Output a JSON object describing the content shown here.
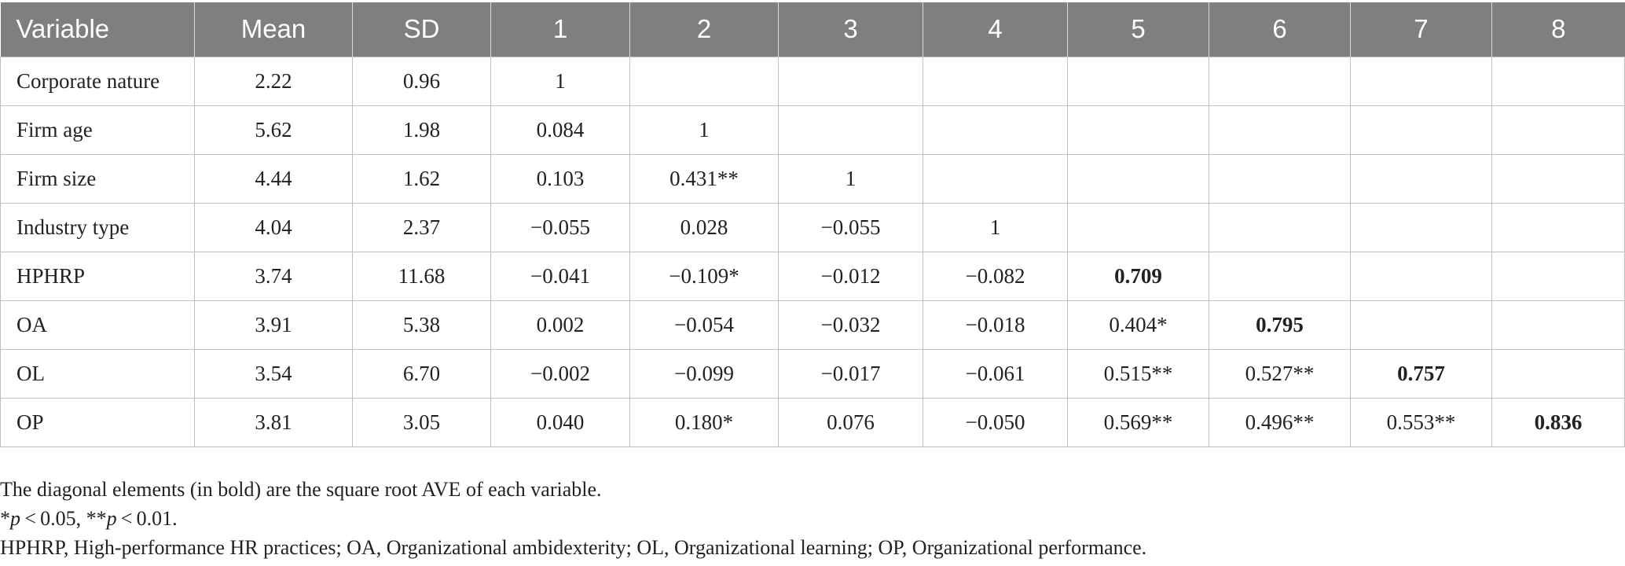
{
  "table": {
    "headers": [
      "Variable",
      "Mean",
      "SD",
      "1",
      "2",
      "3",
      "4",
      "5",
      "6",
      "7",
      "8"
    ],
    "rows": [
      [
        "Corporate nature",
        "2.22",
        "0.96",
        "1",
        "",
        "",
        "",
        "",
        "",
        "",
        ""
      ],
      [
        "Firm age",
        "5.62",
        "1.98",
        "0.084",
        "1",
        "",
        "",
        "",
        "",
        "",
        ""
      ],
      [
        "Firm size",
        "4.44",
        "1.62",
        "0.103",
        "0.431**",
        "1",
        "",
        "",
        "",
        "",
        ""
      ],
      [
        "Industry type",
        "4.04",
        "2.37",
        "−0.055",
        "0.028",
        "−0.055",
        "1",
        "",
        "",
        "",
        ""
      ],
      [
        "HPHRP",
        "3.74",
        "11.68",
        "−0.041",
        "−0.109*",
        "−0.012",
        "−0.082",
        "0.709",
        "",
        "",
        ""
      ],
      [
        "OA",
        "3.91",
        "5.38",
        "0.002",
        "−0.054",
        "−0.032",
        "−0.018",
        "0.404*",
        "0.795",
        "",
        ""
      ],
      [
        "OL",
        "3.54",
        "6.70",
        "−0.002",
        "−0.099",
        "−0.017",
        "−0.061",
        "0.515**",
        "0.527**",
        "0.757",
        ""
      ],
      [
        "OP",
        "3.81",
        "3.05",
        "0.040",
        "0.180*",
        "0.076",
        "−0.050",
        "0.569**",
        "0.496**",
        "0.553**",
        "0.836"
      ]
    ],
    "bold_cells": [
      [
        4,
        7
      ],
      [
        5,
        8
      ],
      [
        6,
        9
      ],
      [
        7,
        10
      ]
    ]
  },
  "notes": {
    "line1": "The diagonal elements (in bold) are the square root AVE of each variable.",
    "line2_star1": "*",
    "line2_p1": "p",
    "line2_mid": " < 0.05, **",
    "line2_p2": "p",
    "line2_end": " < 0.01.",
    "line3": "HPHRP, High-performance HR practices; OA, Organizational ambidexterity; OL, Organizational learning; OP, Organizational performance."
  }
}
